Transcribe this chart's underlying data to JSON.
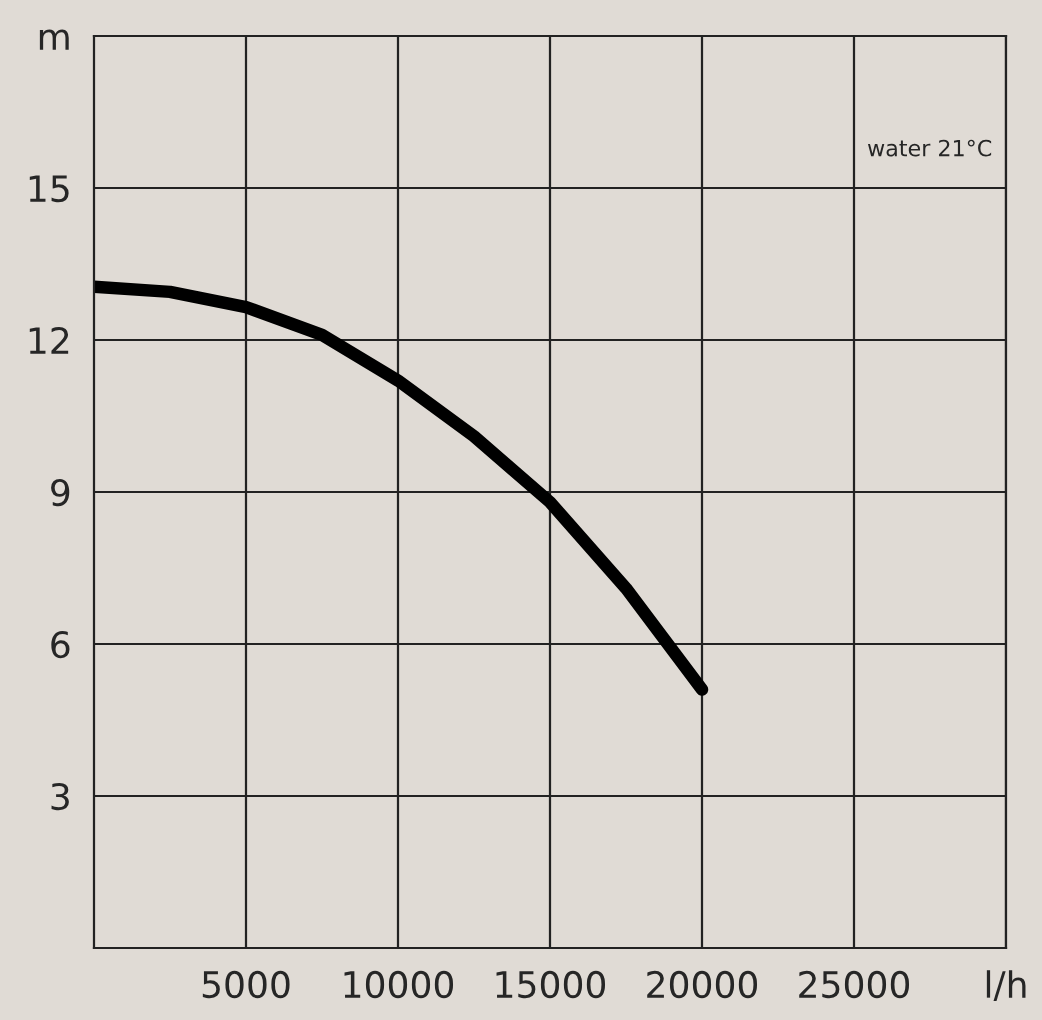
{
  "chart_data": {
    "type": "line",
    "annotations": [
      "water 21°C"
    ],
    "x": [
      0,
      2500,
      5000,
      7500,
      10000,
      12500,
      15000,
      17500,
      20000
    ],
    "series": [
      {
        "color": "#000000",
        "values": [
          13.05,
          12.95,
          12.65,
          12.1,
          11.2,
          10.1,
          8.8,
          7.1,
          5.1
        ]
      }
    ],
    "xlim": [
      0,
      30000
    ],
    "xticks": [
      5000,
      10000,
      15000,
      20000,
      25000,
      {
        "value": 30000,
        "label": "l/h"
      }
    ],
    "ylim": [
      0,
      18
    ],
    "yticks": [
      3,
      6,
      9,
      12,
      15,
      {
        "value": 18,
        "label": "m"
      }
    ],
    "grid": true,
    "marker": "none",
    "line_style": "solid"
  }
}
